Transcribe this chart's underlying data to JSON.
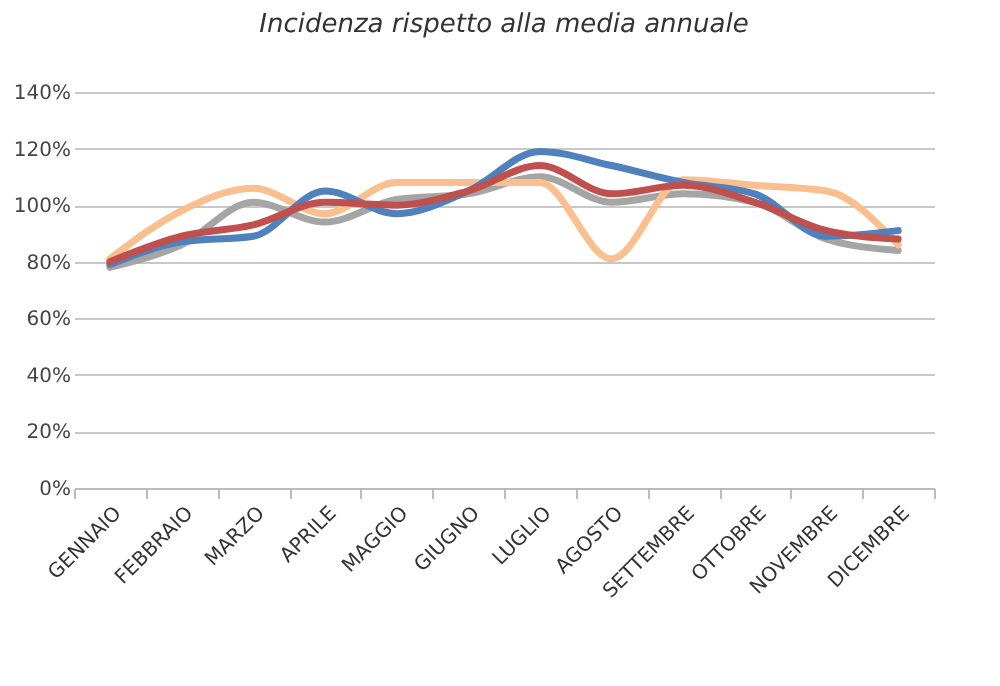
{
  "chart_data": {
    "type": "line",
    "title": "Incidenza rispetto alla media annuale",
    "categories": [
      "GENNAIO",
      "FEBBRAIO",
      "MARZO",
      "APRILE",
      "MAGGIO",
      "GIUGNO",
      "LUGLIO",
      "AGOSTO",
      "SETTEMBRE",
      "OTTOBRE",
      "NOVEMBRE",
      "DICEMBRE"
    ],
    "series": [
      {
        "color": "#a5a5a5",
        "values": [
          78,
          86,
          101,
          94,
          102,
          104,
          110,
          101,
          104,
          101,
          88,
          84
        ]
      },
      {
        "color": "#f9bf8f",
        "values": [
          81,
          98,
          106,
          97,
          108,
          108,
          108,
          81,
          109,
          107,
          105,
          86
        ]
      },
      {
        "color": "#4f81bd",
        "values": [
          79,
          87,
          89,
          105,
          97,
          105,
          119,
          114,
          108,
          104,
          89,
          91
        ]
      },
      {
        "color": "#c0504d",
        "values": [
          80,
          89,
          93,
          101,
          100,
          105,
          114,
          104,
          107,
          101,
          91,
          88
        ]
      }
    ],
    "ylim": [
      0,
      140
    ],
    "yticks": [
      {
        "value": 0,
        "label": "0%"
      },
      {
        "value": 20,
        "label": "20%"
      },
      {
        "value": 40,
        "label": "40%"
      },
      {
        "value": 60,
        "label": "60%"
      },
      {
        "value": 80,
        "label": "80%"
      },
      {
        "value": 100,
        "label": "100%"
      },
      {
        "value": 120,
        "label": "120%"
      },
      {
        "value": 140,
        "label": "140%"
      }
    ],
    "grid": "y",
    "marker": "none",
    "line_style": "solid"
  }
}
